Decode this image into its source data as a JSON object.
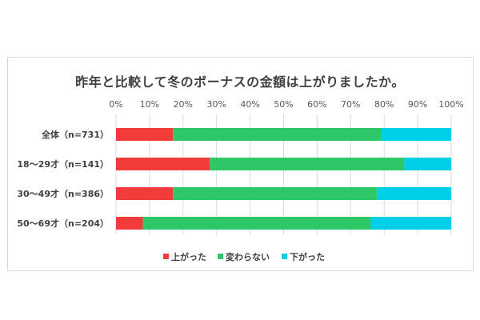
{
  "chart_data": {
    "type": "bar",
    "orientation": "horizontal",
    "stacked": true,
    "title": "昨年と比較して冬のボーナスの金額は上がりましたか。",
    "xlim": [
      0,
      100
    ],
    "x_ticks": [
      "0%",
      "10%",
      "20%",
      "30%",
      "40%",
      "50%",
      "60%",
      "70%",
      "80%",
      "90%",
      "100%"
    ],
    "categories": [
      "全体（n=731）",
      "18～29才（n=141）",
      "30～49才（n=386）",
      "50～69才（n=204）"
    ],
    "series": [
      {
        "name": "上がった",
        "color": "#f23b3b",
        "values": [
          17,
          28,
          17,
          8
        ]
      },
      {
        "name": "変わらない",
        "color": "#2ec768",
        "values": [
          62,
          58,
          61,
          68
        ]
      },
      {
        "name": "下がった",
        "color": "#00cfe8",
        "values": [
          21,
          14,
          22,
          24
        ]
      }
    ],
    "grid": true,
    "legend": "bottom"
  }
}
